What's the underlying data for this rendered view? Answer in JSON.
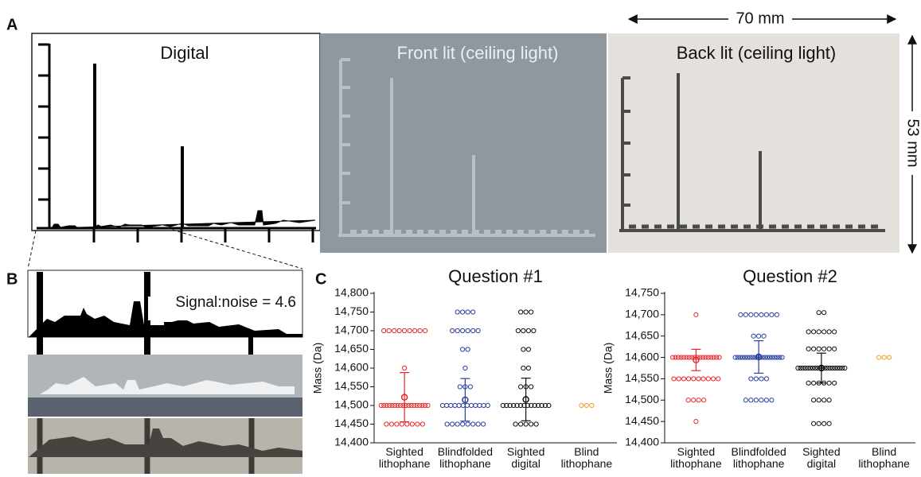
{
  "panels": {
    "A": {
      "label": "A",
      "digital": "Digital",
      "front_lit": "Front lit (ceiling light)",
      "back_lit": "Back lit (ceiling light)",
      "width": "70 mm",
      "height": "53 mm"
    },
    "B": {
      "label": "B",
      "signal_noise": "Signal:noise = 4.6"
    },
    "C": {
      "label": "C"
    }
  },
  "chart_data": [
    {
      "type": "scatter",
      "title": "Question #1",
      "y_label": "Mass (Da)",
      "categories": [
        "Sighted lithophane",
        "Blindfolded lithophane",
        "Sighted digital",
        "Blind lithophane"
      ],
      "colors": [
        "#e8262a",
        "#2a3f9e",
        "#111111",
        "#f2a024"
      ],
      "points": [
        [
          14700,
          14700,
          14700,
          14700,
          14700,
          14700,
          14700,
          14700,
          14700,
          14600,
          14500,
          14500,
          14500,
          14500,
          14500,
          14500,
          14500,
          14500,
          14500,
          14500,
          14500,
          14500,
          14500,
          14500,
          14500,
          14500,
          14500,
          14500,
          14450,
          14450,
          14450,
          14450,
          14450,
          14450,
          14450,
          14450
        ],
        [
          14750,
          14750,
          14750,
          14750,
          14700,
          14700,
          14700,
          14700,
          14700,
          14700,
          14650,
          14650,
          14600,
          14550,
          14550,
          14550,
          14500,
          14500,
          14500,
          14500,
          14500,
          14500,
          14500,
          14500,
          14500,
          14500,
          14500,
          14500,
          14450,
          14450,
          14450,
          14450,
          14450,
          14450,
          14450,
          14450
        ],
        [
          14750,
          14750,
          14750,
          14700,
          14700,
          14700,
          14700,
          14650,
          14650,
          14600,
          14600,
          14550,
          14550,
          14550,
          14500,
          14500,
          14500,
          14500,
          14500,
          14500,
          14500,
          14500,
          14500,
          14500,
          14500,
          14500,
          14500,
          14500,
          14450,
          14450,
          14450,
          14450,
          14450
        ],
        [
          14500,
          14500,
          14500
        ]
      ],
      "means": [
        14522,
        14515,
        14516,
        null
      ],
      "errors": [
        66,
        57,
        57,
        null
      ],
      "ylim": [
        14400,
        14800
      ],
      "yticks": [
        {
          "value": 14400,
          "label": "14,400"
        },
        {
          "value": 14450,
          "label": "14,450"
        },
        {
          "value": 14500,
          "label": "14,500"
        },
        {
          "value": 14550,
          "label": "14,550"
        },
        {
          "value": 14600,
          "label": "14,600"
        },
        {
          "value": 14650,
          "label": "14,650"
        },
        {
          "value": 14700,
          "label": "14,700"
        },
        {
          "value": 14750,
          "label": "14,750"
        },
        {
          "value": 14800,
          "label": "14,800"
        }
      ]
    },
    {
      "type": "scatter",
      "title": "Question #2",
      "y_label": "Mass (Da)",
      "categories": [
        "Sighted lithophane",
        "Blindfolded lithophane",
        "Sighted digital",
        "Blind lithophane"
      ],
      "colors": [
        "#e8262a",
        "#2a3f9e",
        "#111111",
        "#f2a024"
      ],
      "points": [
        [
          14700,
          14600,
          14600,
          14600,
          14600,
          14600,
          14600,
          14600,
          14600,
          14600,
          14600,
          14600,
          14600,
          14600,
          14600,
          14600,
          14600,
          14600,
          14600,
          14550,
          14550,
          14550,
          14550,
          14550,
          14550,
          14550,
          14550,
          14550,
          14550,
          14500,
          14500,
          14500,
          14500,
          14450
        ],
        [
          14700,
          14700,
          14700,
          14700,
          14700,
          14700,
          14700,
          14700,
          14650,
          14650,
          14650,
          14600,
          14600,
          14600,
          14600,
          14600,
          14600,
          14600,
          14600,
          14600,
          14600,
          14600,
          14600,
          14600,
          14600,
          14600,
          14600,
          14600,
          14600,
          14600,
          14600,
          14550,
          14550,
          14550,
          14550,
          14500,
          14500,
          14500,
          14500,
          14500,
          14500
        ],
        [
          14705,
          14705,
          14660,
          14660,
          14660,
          14660,
          14660,
          14660,
          14620,
          14620,
          14620,
          14620,
          14620,
          14620,
          14575,
          14575,
          14575,
          14575,
          14575,
          14575,
          14575,
          14575,
          14575,
          14575,
          14575,
          14575,
          14575,
          14575,
          14575,
          14575,
          14575,
          14575,
          14575,
          14575,
          14540,
          14540,
          14540,
          14540,
          14540,
          14540,
          14500,
          14500,
          14500,
          14500,
          14445,
          14445,
          14445,
          14445
        ],
        [
          14600,
          14600,
          14600
        ]
      ],
      "means": [
        14594,
        14601,
        14575,
        null
      ],
      "errors": [
        25,
        38,
        35,
        null
      ],
      "ylim": [
        14400,
        14750
      ],
      "yticks": [
        {
          "value": 14400,
          "label": "14,400"
        },
        {
          "value": 14450,
          "label": "14,450"
        },
        {
          "value": 14500,
          "label": "14,500"
        },
        {
          "value": 14550,
          "label": "14,550"
        },
        {
          "value": 14600,
          "label": "14,600"
        },
        {
          "value": 14650,
          "label": "14,650"
        },
        {
          "value": 14700,
          "label": "14,700"
        },
        {
          "value": 14750,
          "label": "14,750"
        }
      ]
    }
  ]
}
